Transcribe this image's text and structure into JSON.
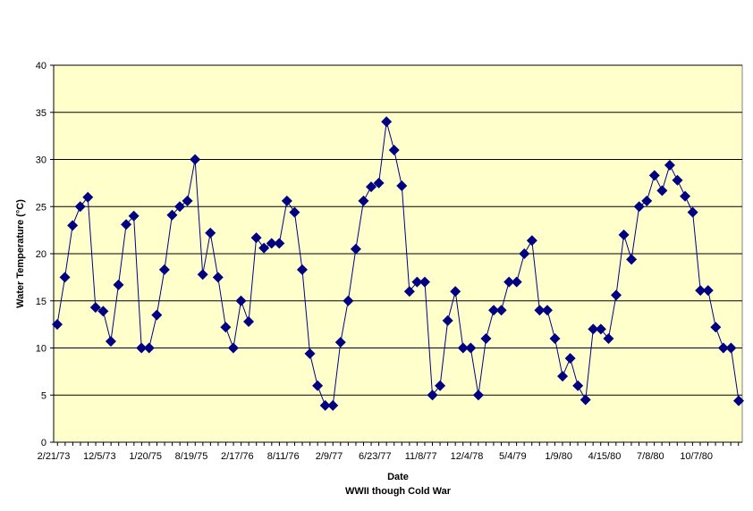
{
  "chart_data": {
    "type": "line",
    "xlabel": "Date",
    "subtitle": "WWII though Cold War",
    "ylabel": "Water Temperature (°C)",
    "ylim": [
      0,
      40
    ],
    "y_ticks": [
      "0",
      "5",
      "10",
      "15",
      "20",
      "25",
      "30",
      "35",
      "40"
    ],
    "x_tick_labels": [
      "2/21/73",
      "12/5/73",
      "1/20/75",
      "8/19/75",
      "2/17/76",
      "8/11/76",
      "2/9/77",
      "6/23/77",
      "11/8/77",
      "12/4/78",
      "5/4/79",
      "1/9/80",
      "4/15/80",
      "7/8/80",
      "10/7/80"
    ],
    "grid": "horizontal",
    "plot_background": "#FFFFCC",
    "series": [
      {
        "color": "#000080",
        "marker": "diamond",
        "values": [
          12.5,
          17.5,
          23,
          25,
          26,
          14.3,
          13.9,
          10.7,
          16.7,
          23.1,
          24,
          10,
          10,
          13.5,
          18.3,
          24.1,
          25,
          25.6,
          30,
          17.8,
          22.2,
          17.5,
          12.2,
          10,
          15,
          12.8,
          21.7,
          20.6,
          21.1,
          21.1,
          25.6,
          24.4,
          18.3,
          9.4,
          6,
          3.9,
          3.9,
          10.6,
          15,
          20.5,
          25.6,
          27.1,
          27.5,
          34,
          31,
          27.2,
          16,
          17,
          17,
          5,
          6,
          12.9,
          16,
          10,
          10,
          5,
          11,
          14,
          14,
          17,
          17,
          20,
          21.4,
          14,
          14,
          11,
          7,
          8.9,
          6,
          4.5,
          12,
          12,
          11,
          15.6,
          22,
          19.4,
          25,
          25.6,
          28.3,
          26.7,
          29.4,
          27.8,
          26.1,
          24.4,
          16.1,
          16.1,
          12.2,
          10,
          10,
          4.4
        ]
      }
    ]
  }
}
